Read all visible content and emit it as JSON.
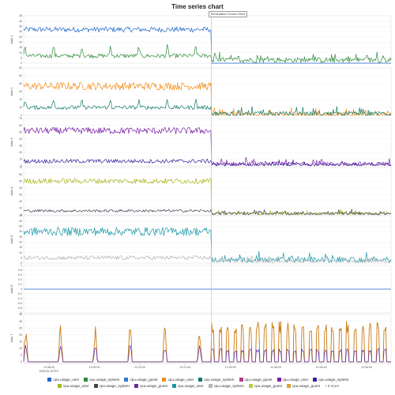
{
  "chart_data": {
    "type": "line",
    "title": "Time series chart",
    "annotation": "Remediation Service Killed",
    "x_ticks": [
      "11:56:40",
      "12:05:00",
      "12:13:20",
      "12:21:40",
      "12:30:00",
      "12:38:20",
      "12:46:40",
      "12:55:00"
    ],
    "x_subtitle": "2025-06-16 PDT",
    "x_range": [
      "11:52:00",
      "12:59:30"
    ],
    "event_time": "12:26:30",
    "panels": [
      {
        "ylabel": "Axis 1",
        "ylim": [
          0,
          45
        ],
        "ticks": [
          0,
          5,
          10,
          15,
          20,
          25,
          30,
          35,
          40,
          45
        ],
        "series": [
          {
            "color": "#1f66cc",
            "before": 32,
            "before_noise": 2.5,
            "after": 0,
            "after_noise": 0,
            "spikes": "none"
          },
          {
            "color": "#2e8b3a",
            "before": 7,
            "before_noise": 2,
            "after": 3,
            "after_noise": 2.5,
            "spikes": "humps"
          }
        ]
      },
      {
        "ylabel": "Axis 2",
        "ylim": [
          0,
          60
        ],
        "ticks": [
          0,
          10,
          20,
          30,
          40,
          50,
          60
        ],
        "series": [
          {
            "color": "#f28c1a",
            "before": 37,
            "before_noise": 5,
            "after": 1,
            "after_noise": 3,
            "spikes": "none"
          },
          {
            "color": "#0f7a66",
            "before": 10,
            "before_noise": 2.5,
            "after": 2,
            "after_noise": 3,
            "spikes": "humps"
          }
        ]
      },
      {
        "ylabel": "Axis 3",
        "ylim": [
          0,
          70
        ],
        "ticks": [
          0,
          10,
          20,
          30,
          40,
          50,
          60,
          70
        ],
        "series": [
          {
            "color": "#7a1fa6",
            "before": 52,
            "before_noise": 5,
            "after": 3,
            "after_noise": 3,
            "spikes": "none"
          },
          {
            "color": "#3a1f9a",
            "before": 7,
            "before_noise": 3,
            "after": 2,
            "after_noise": 2,
            "spikes": "none"
          }
        ]
      },
      {
        "ylabel": "Axis 4",
        "ylim": [
          0,
          70
        ],
        "ticks": [
          0,
          10,
          20,
          30,
          40,
          50,
          60,
          70
        ],
        "series": [
          {
            "color": "#aab61e",
            "before": 50,
            "before_noise": 4,
            "after": 2,
            "after_noise": 2,
            "spikes": "none"
          },
          {
            "color": "#3f4654",
            "before": 6,
            "before_noise": 2,
            "after": 2,
            "after_noise": 2,
            "spikes": "none"
          }
        ]
      },
      {
        "ylabel": "Axis 5",
        "ylim": [
          0,
          45
        ],
        "ticks": [
          0,
          5,
          10,
          15,
          20,
          25,
          30,
          35,
          40,
          45
        ],
        "series": [
          {
            "color": "#1797a8",
            "before": 30,
            "before_noise": 4,
            "after": 3,
            "after_noise": 2.5,
            "spikes": "none"
          },
          {
            "color": "#b5b5b5",
            "before": 5,
            "before_noise": 2,
            "after": 2,
            "after_noise": 1.5,
            "spikes": "none"
          }
        ]
      },
      {
        "ylabel": "Axis 6",
        "ylim": [
          -1,
          1
        ],
        "ticks": [
          -1,
          -0.8,
          -0.6,
          -0.4,
          -0.2,
          0,
          0.2,
          0.4,
          0.6,
          0.8,
          1
        ],
        "series": [
          {
            "color": "#1f66cc",
            "before": 0,
            "before_noise": 0,
            "after": 0,
            "after_noise": 0,
            "spikes": "none"
          }
        ]
      },
      {
        "ylabel": "Axis 7",
        "ylim": [
          0,
          35
        ],
        "ticks": [
          0,
          5,
          10,
          15,
          20,
          25,
          30,
          35
        ],
        "series": [
          {
            "color": "#c97a12",
            "before": 0,
            "before_noise": 0,
            "after": 0,
            "after_noise": 0,
            "spikes": "bursts"
          },
          {
            "color": "#5a2fa6",
            "before": 0,
            "before_noise": 0,
            "after": 0,
            "after_noise": 0,
            "spikes": "small-bursts"
          }
        ]
      }
    ],
    "legend": [
      [
        {
          "label": "cpu.usage_user",
          "color": "#1f66cc"
        },
        {
          "label": "cpu.usage_system",
          "color": "#2e8b3a"
        },
        {
          "label": "cpu.usage_guest",
          "color": "#2a7fd0"
        },
        {
          "label": "cpu.usage_user",
          "color": "#f28c1a"
        },
        {
          "label": "cpu.usage_system",
          "color": "#0f7a66"
        },
        {
          "label": "cpu.usage_guest",
          "color": "#b03a8a"
        },
        {
          "label": "cpu.usage_user",
          "color": "#7a1fa6"
        },
        {
          "label": "cpu.usage_system",
          "color": "#3a1f9a"
        }
      ],
      [
        {
          "label": "cpu.usage_user",
          "color": "#aab61e"
        },
        {
          "label": "cpu.usage_system",
          "color": "#3f4654"
        },
        {
          "label": "cpu.usage_guest",
          "color": "#6a2a9a"
        },
        {
          "label": "cpu.usage_user",
          "color": "#1797a8"
        },
        {
          "label": "cpu.usage_system",
          "color": "#b5b5b5"
        },
        {
          "label": "cpu.usage_guest",
          "color": "#b8c94a"
        },
        {
          "label": "cpu.usage_guest",
          "color": "#e0a030"
        }
      ]
    ],
    "legend_more": "+ 6 more",
    "grid": true
  }
}
